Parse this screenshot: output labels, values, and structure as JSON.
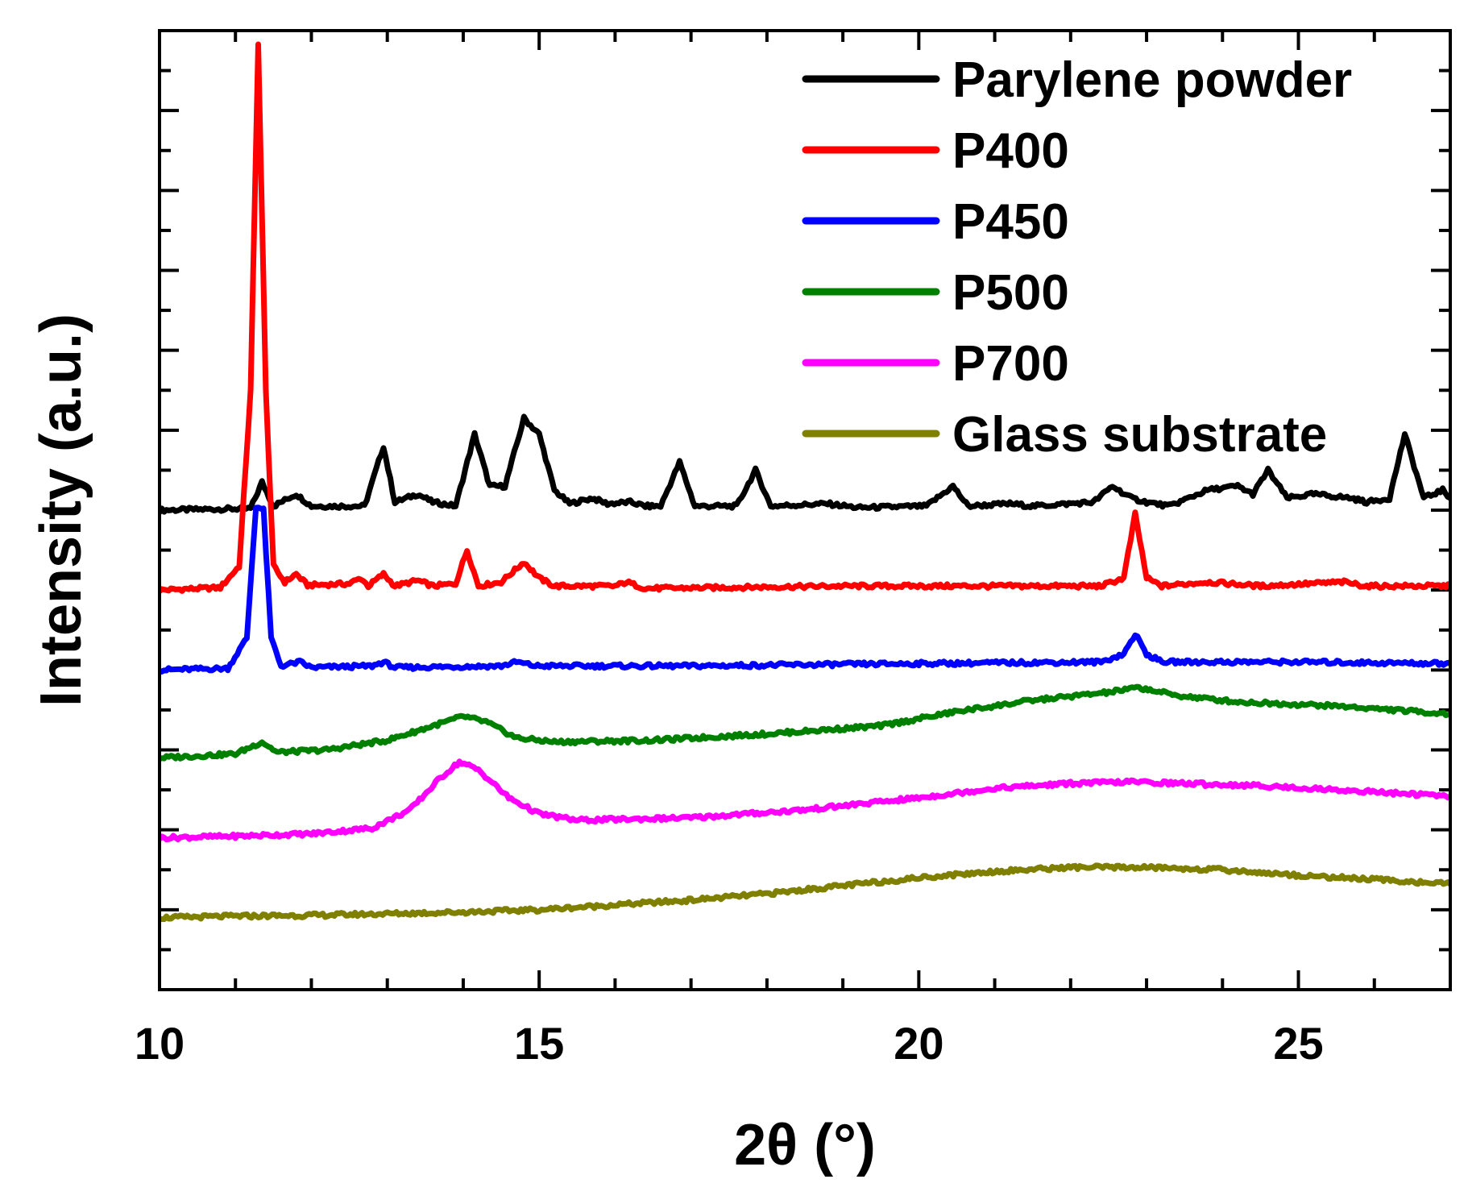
{
  "chart_data": {
    "type": "line",
    "title": "",
    "xlabel": "2θ (°)",
    "ylabel": "Intensity (a.u.)",
    "xlim": [
      10,
      27
    ],
    "ylim": [
      0,
      12
    ],
    "x_ticks": [
      10,
      15,
      20,
      25
    ],
    "x_tick_labels": [
      "10",
      "15",
      "20",
      "25"
    ],
    "y_tick_labels_shown": false,
    "legend_position": "top-right",
    "series": [
      {
        "name": "Parylene powder",
        "color": "#000000",
        "baseline": 6.0,
        "points": [
          [
            10,
            6.0
          ],
          [
            11.2,
            6.02
          ],
          [
            11.35,
            6.35
          ],
          [
            11.5,
            6.05
          ],
          [
            11.8,
            6.2
          ],
          [
            12.0,
            6.05
          ],
          [
            12.7,
            6.05
          ],
          [
            12.95,
            6.8
          ],
          [
            13.1,
            6.1
          ],
          [
            13.4,
            6.2
          ],
          [
            13.6,
            6.1
          ],
          [
            13.9,
            6.05
          ],
          [
            14.15,
            6.95
          ],
          [
            14.35,
            6.3
          ],
          [
            14.55,
            6.3
          ],
          [
            14.8,
            7.15
          ],
          [
            15.0,
            6.95
          ],
          [
            15.2,
            6.25
          ],
          [
            15.4,
            6.08
          ],
          [
            15.7,
            6.15
          ],
          [
            15.9,
            6.08
          ],
          [
            16.2,
            6.1
          ],
          [
            16.4,
            6.05
          ],
          [
            16.6,
            6.05
          ],
          [
            16.85,
            6.6
          ],
          [
            17.05,
            6.05
          ],
          [
            17.6,
            6.05
          ],
          [
            17.85,
            6.5
          ],
          [
            18.05,
            6.05
          ],
          [
            18.8,
            6.08
          ],
          [
            19.2,
            6.03
          ],
          [
            20.1,
            6.05
          ],
          [
            20.45,
            6.3
          ],
          [
            20.65,
            6.05
          ],
          [
            21.2,
            6.08
          ],
          [
            21.5,
            6.05
          ],
          [
            22.3,
            6.1
          ],
          [
            22.55,
            6.3
          ],
          [
            22.8,
            6.15
          ],
          [
            23.0,
            6.1
          ],
          [
            23.3,
            6.05
          ],
          [
            23.8,
            6.25
          ],
          [
            24.2,
            6.3
          ],
          [
            24.4,
            6.2
          ],
          [
            24.6,
            6.5
          ],
          [
            24.85,
            6.15
          ],
          [
            25.2,
            6.2
          ],
          [
            25.7,
            6.15
          ],
          [
            25.9,
            6.1
          ],
          [
            26.2,
            6.15
          ],
          [
            26.4,
            6.95
          ],
          [
            26.65,
            6.15
          ],
          [
            26.9,
            6.25
          ],
          [
            27,
            6.15
          ]
        ]
      },
      {
        "name": "P400",
        "color": "#ff0000",
        "baseline": 5.0,
        "points": [
          [
            10,
            5.0
          ],
          [
            10.8,
            5.03
          ],
          [
            11.05,
            5.3
          ],
          [
            11.2,
            7.5
          ],
          [
            11.3,
            11.85
          ],
          [
            11.4,
            7.5
          ],
          [
            11.5,
            5.3
          ],
          [
            11.65,
            5.1
          ],
          [
            11.8,
            5.2
          ],
          [
            11.95,
            5.06
          ],
          [
            12.5,
            5.08
          ],
          [
            12.65,
            5.15
          ],
          [
            12.75,
            5.05
          ],
          [
            12.95,
            5.2
          ],
          [
            13.1,
            5.05
          ],
          [
            13.4,
            5.12
          ],
          [
            13.6,
            5.05
          ],
          [
            13.9,
            5.08
          ],
          [
            14.05,
            5.5
          ],
          [
            14.2,
            5.05
          ],
          [
            14.5,
            5.1
          ],
          [
            14.8,
            5.35
          ],
          [
            15.0,
            5.15
          ],
          [
            15.2,
            5.05
          ],
          [
            16.0,
            5.05
          ],
          [
            16.15,
            5.1
          ],
          [
            16.4,
            5.02
          ],
          [
            19.0,
            5.05
          ],
          [
            21.0,
            5.05
          ],
          [
            22.4,
            5.05
          ],
          [
            22.7,
            5.15
          ],
          [
            22.85,
            5.95
          ],
          [
            23.0,
            5.15
          ],
          [
            23.2,
            5.05
          ],
          [
            23.8,
            5.1
          ],
          [
            24.5,
            5.05
          ],
          [
            25.6,
            5.1
          ],
          [
            25.9,
            5.05
          ],
          [
            27,
            5.05
          ]
        ]
      },
      {
        "name": "P450",
        "color": "#0000ff",
        "baseline": 4.0,
        "points": [
          [
            10,
            4.0
          ],
          [
            10.9,
            4.02
          ],
          [
            11.15,
            4.4
          ],
          [
            11.27,
            6.05
          ],
          [
            11.37,
            6.0
          ],
          [
            11.47,
            4.4
          ],
          [
            11.6,
            4.05
          ],
          [
            11.85,
            4.1
          ],
          [
            12.0,
            4.03
          ],
          [
            12.8,
            4.05
          ],
          [
            12.95,
            4.1
          ],
          [
            13.1,
            4.03
          ],
          [
            14.5,
            4.05
          ],
          [
            14.7,
            4.1
          ],
          [
            14.95,
            4.05
          ],
          [
            17.0,
            4.05
          ],
          [
            20.0,
            4.08
          ],
          [
            22.4,
            4.1
          ],
          [
            22.7,
            4.2
          ],
          [
            22.85,
            4.45
          ],
          [
            23.0,
            4.2
          ],
          [
            23.2,
            4.1
          ],
          [
            25.0,
            4.1
          ],
          [
            27,
            4.08
          ]
        ]
      },
      {
        "name": "P500",
        "color": "#008000",
        "baseline": 2.9,
        "points": [
          [
            10,
            2.9
          ],
          [
            11.0,
            2.95
          ],
          [
            11.35,
            3.1
          ],
          [
            11.55,
            2.97
          ],
          [
            12.2,
            3.0
          ],
          [
            13.0,
            3.12
          ],
          [
            13.6,
            3.3
          ],
          [
            14.0,
            3.42
          ],
          [
            14.3,
            3.35
          ],
          [
            14.7,
            3.15
          ],
          [
            15.2,
            3.1
          ],
          [
            16.5,
            3.12
          ],
          [
            18.0,
            3.2
          ],
          [
            19.5,
            3.3
          ],
          [
            20.5,
            3.48
          ],
          [
            21.5,
            3.62
          ],
          [
            22.5,
            3.72
          ],
          [
            22.9,
            3.78
          ],
          [
            23.4,
            3.68
          ],
          [
            24.2,
            3.6
          ],
          [
            25.5,
            3.55
          ],
          [
            27,
            3.45
          ]
        ]
      },
      {
        "name": "P700",
        "color": "#ff00ff",
        "baseline": 1.9,
        "points": [
          [
            10,
            1.9
          ],
          [
            11.0,
            1.92
          ],
          [
            12.0,
            1.95
          ],
          [
            12.8,
            2.02
          ],
          [
            13.3,
            2.25
          ],
          [
            13.7,
            2.65
          ],
          [
            13.95,
            2.85
          ],
          [
            14.2,
            2.75
          ],
          [
            14.6,
            2.4
          ],
          [
            15.0,
            2.2
          ],
          [
            15.5,
            2.12
          ],
          [
            17.0,
            2.15
          ],
          [
            18.5,
            2.25
          ],
          [
            20.0,
            2.4
          ],
          [
            21.0,
            2.52
          ],
          [
            22.0,
            2.58
          ],
          [
            22.8,
            2.6
          ],
          [
            23.5,
            2.58
          ],
          [
            24.5,
            2.55
          ],
          [
            25.5,
            2.5
          ],
          [
            27,
            2.42
          ]
        ]
      },
      {
        "name": "Glass substrate",
        "color": "#808000",
        "baseline": 0.9,
        "points": [
          [
            10,
            0.9
          ],
          [
            11.0,
            0.92
          ],
          [
            12.0,
            0.93
          ],
          [
            13.0,
            0.95
          ],
          [
            14.0,
            0.97
          ],
          [
            15.0,
            1.0
          ],
          [
            16.0,
            1.06
          ],
          [
            17.0,
            1.12
          ],
          [
            18.0,
            1.2
          ],
          [
            19.0,
            1.3
          ],
          [
            20.0,
            1.4
          ],
          [
            21.0,
            1.48
          ],
          [
            22.0,
            1.53
          ],
          [
            23.0,
            1.53
          ],
          [
            24.0,
            1.5
          ],
          [
            25.0,
            1.43
          ],
          [
            26.0,
            1.38
          ],
          [
            27,
            1.32
          ]
        ]
      }
    ]
  }
}
